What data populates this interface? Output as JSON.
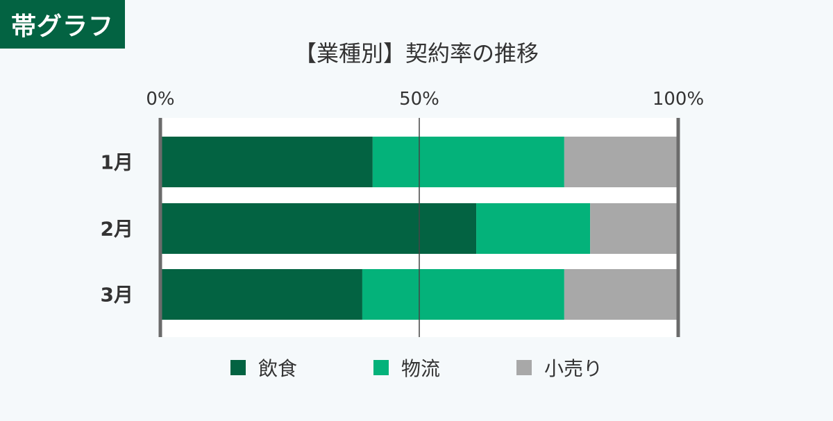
{
  "badge": {
    "label": "帯グラフ"
  },
  "chart_data": {
    "type": "bar",
    "orientation": "horizontal-stacked-100",
    "title": "【業種別】契約率の推移",
    "categories": [
      "1月",
      "2月",
      "3月"
    ],
    "x_ticks": [
      "0%",
      "50%",
      "100%"
    ],
    "xlim": [
      0,
      100
    ],
    "grid": true,
    "legend_position": "bottom",
    "series": [
      {
        "name": "飲食",
        "color": "#036342",
        "values": [
          41,
          61,
          39
        ]
      },
      {
        "name": "物流",
        "color": "#04b27a",
        "values": [
          37,
          22,
          39
        ]
      },
      {
        "name": "小売り",
        "color": "#a8a8a8",
        "values": [
          22,
          17,
          22
        ]
      }
    ]
  }
}
